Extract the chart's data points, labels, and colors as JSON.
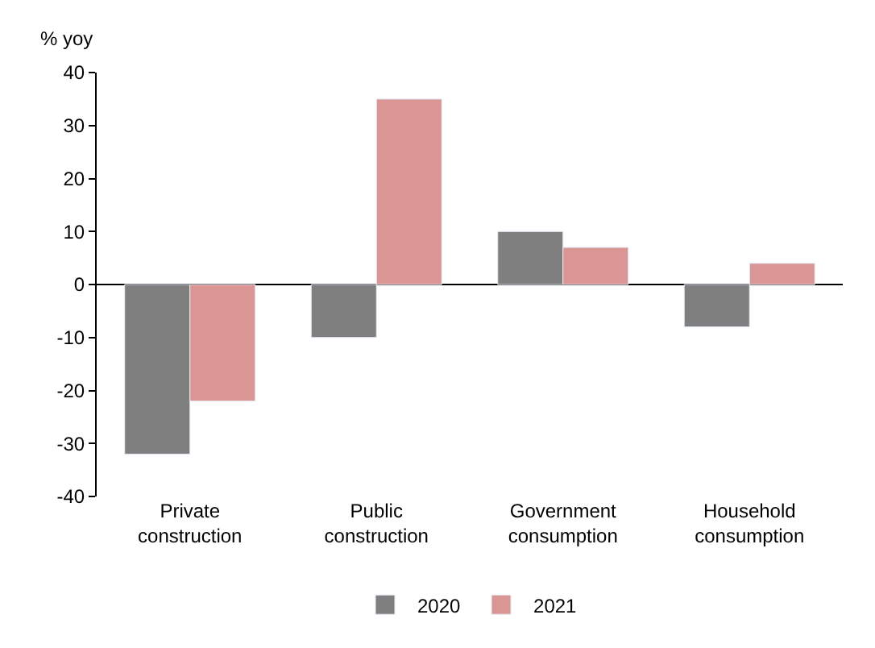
{
  "chart_data": {
    "type": "bar",
    "ylabel": "% yoy",
    "categories": [
      "Private construction",
      "Public construction",
      "Government consumption",
      "Household consumption"
    ],
    "series": [
      {
        "name": "2020",
        "color": "#7f7f7f",
        "values": [
          -32,
          -10,
          10,
          -8
        ]
      },
      {
        "name": "2021",
        "color": "#d99694",
        "values": [
          -22,
          35,
          7,
          4
        ]
      }
    ],
    "ylim": [
      -40,
      40
    ],
    "yticks": [
      -40,
      -30,
      -20,
      -10,
      0,
      10,
      20,
      30,
      40
    ],
    "legend": "bottom"
  }
}
